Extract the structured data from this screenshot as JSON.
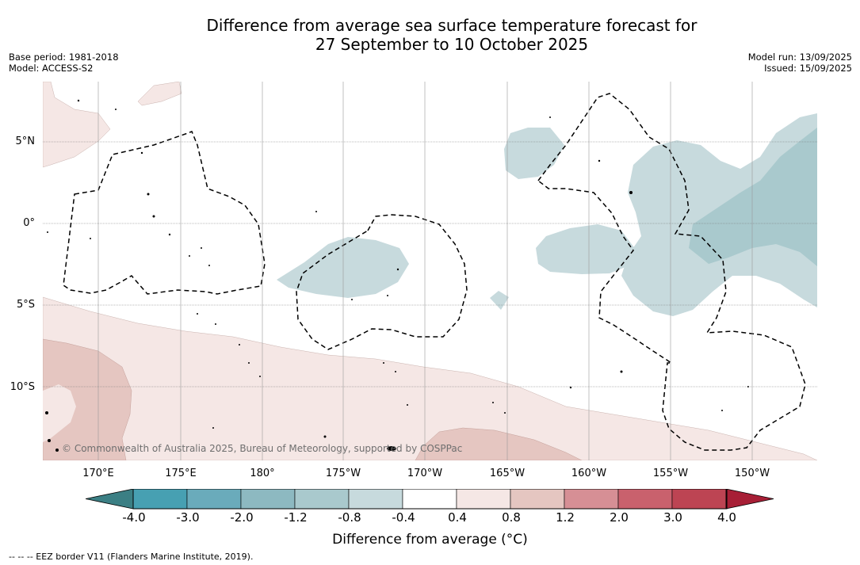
{
  "title": {
    "line1": "Difference from average sea surface temperature forecast for",
    "line2": "27 September to 10 October 2025"
  },
  "meta_left": {
    "base_period": "Base period: 1981-2018",
    "model": "Model: ACCESS-S2"
  },
  "meta_right": {
    "model_run": "Model run: 13/09/2025",
    "issued": "Issued: 15/09/2025"
  },
  "map": {
    "lat_labels": [
      "5°N",
      "0°",
      "5°S",
      "10°S"
    ],
    "lon_labels": [
      "170°E",
      "175°E",
      "180°",
      "175°W",
      "170°W",
      "165°W",
      "160°W",
      "155°W",
      "150°W"
    ],
    "copyright": "© Commonwealth of Australia 2025, Bureau of Meteorology, supported by COSPPac"
  },
  "colorbar": {
    "ticks": [
      "-4.0",
      "-3.0",
      "-2.0",
      "-1.2",
      "-0.8",
      "-0.4",
      "0.4",
      "0.8",
      "1.2",
      "2.0",
      "3.0",
      "4.0"
    ],
    "colors": [
      "#3b7f84",
      "#47a0b2",
      "#6aabbb",
      "#8db9c1",
      "#a9c9cd",
      "#c7dadd",
      "#ffffff",
      "#f5e7e5",
      "#e5c6c1",
      "#d68f95",
      "#c9616d",
      "#bd4453",
      "#a71f36"
    ],
    "label": "Difference from average (°C)"
  },
  "footnote": "--  --  -- EEZ border V11 (Flanders Marine Institute, 2019)."
}
